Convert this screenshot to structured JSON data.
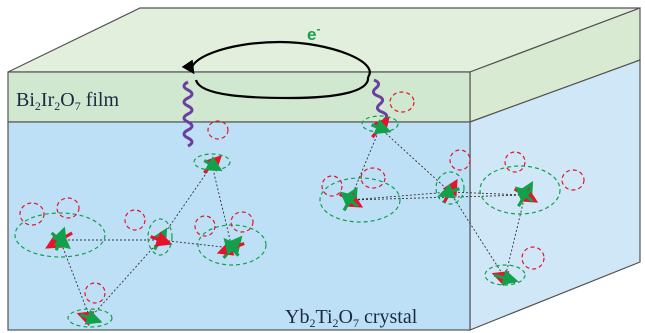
{
  "labels": {
    "electron": {
      "base": "e",
      "sup": "-"
    },
    "film": {
      "parts": [
        "Bi",
        "2",
        "Ir",
        "2",
        "O",
        "7",
        " film"
      ]
    },
    "crystal": {
      "parts": [
        "Yb",
        "2",
        "Ti",
        "2",
        "O",
        "7",
        " crystal"
      ]
    }
  },
  "colors": {
    "film": "#cfe8cf",
    "crystal": "#bde0f7",
    "crystal_side": "#cfe7f6",
    "box_top": "#e2efdd",
    "edge": "#555555",
    "spin_red": "#e4152b",
    "spin_green": "#12a04a",
    "wavy": "#6a3fa0",
    "electron_text": "#17a04a",
    "lattice_line": "#333333"
  },
  "icons": [
    "electron-loop-arrow-icon",
    "wavy-coupling-icon",
    "spin-arrow-icon",
    "spin-cone-ellipse-icon"
  ]
}
